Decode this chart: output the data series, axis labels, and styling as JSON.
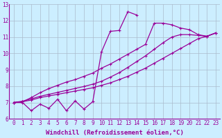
{
  "xlabel": "Windchill (Refroidissement éolien,°C)",
  "bg_color": "#cceeff",
  "line_color": "#990099",
  "x_data": [
    0,
    1,
    2,
    3,
    4,
    5,
    6,
    7,
    8,
    9,
    10,
    11,
    12,
    13,
    14,
    15,
    16,
    17,
    18,
    19,
    20,
    21,
    22,
    23
  ],
  "series1": [
    7.0,
    7.0,
    6.5,
    6.9,
    6.65,
    7.2,
    6.5,
    7.1,
    6.6,
    7.05,
    10.1,
    11.35,
    11.4,
    12.55,
    12.35,
    null,
    null,
    null,
    null,
    null,
    null,
    null,
    null,
    null
  ],
  "series2": [
    7.0,
    7.05,
    7.15,
    7.3,
    7.4,
    7.5,
    7.6,
    7.7,
    7.8,
    7.9,
    8.05,
    8.2,
    8.4,
    8.6,
    8.85,
    9.1,
    9.4,
    9.7,
    10.0,
    10.3,
    10.6,
    10.9,
    11.05,
    11.25
  ],
  "series3": [
    7.0,
    7.08,
    7.22,
    7.38,
    7.5,
    7.62,
    7.74,
    7.86,
    7.98,
    8.12,
    8.3,
    8.55,
    8.82,
    9.15,
    9.5,
    9.85,
    10.25,
    10.65,
    11.0,
    11.15,
    11.15,
    11.1,
    11.05,
    11.25
  ],
  "series4": [
    7.0,
    7.05,
    7.3,
    7.6,
    7.85,
    8.05,
    8.25,
    8.4,
    8.6,
    8.8,
    9.1,
    9.35,
    9.65,
    9.95,
    10.25,
    10.55,
    11.85,
    11.85,
    11.75,
    11.55,
    11.45,
    11.15,
    11.05,
    11.25
  ],
  "ylim": [
    6,
    13
  ],
  "xlim_min": -0.5,
  "xlim_max": 23.5,
  "yticks": [
    6,
    7,
    8,
    9,
    10,
    11,
    12,
    13
  ],
  "xticks": [
    0,
    1,
    2,
    3,
    4,
    5,
    6,
    7,
    8,
    9,
    10,
    11,
    12,
    13,
    14,
    15,
    16,
    17,
    18,
    19,
    20,
    21,
    22,
    23
  ],
  "marker": "D",
  "marker_size": 2.5,
  "linewidth": 0.9,
  "tick_fontsize": 5.5,
  "label_fontsize": 6.5,
  "grid_color": "#aabbcc"
}
